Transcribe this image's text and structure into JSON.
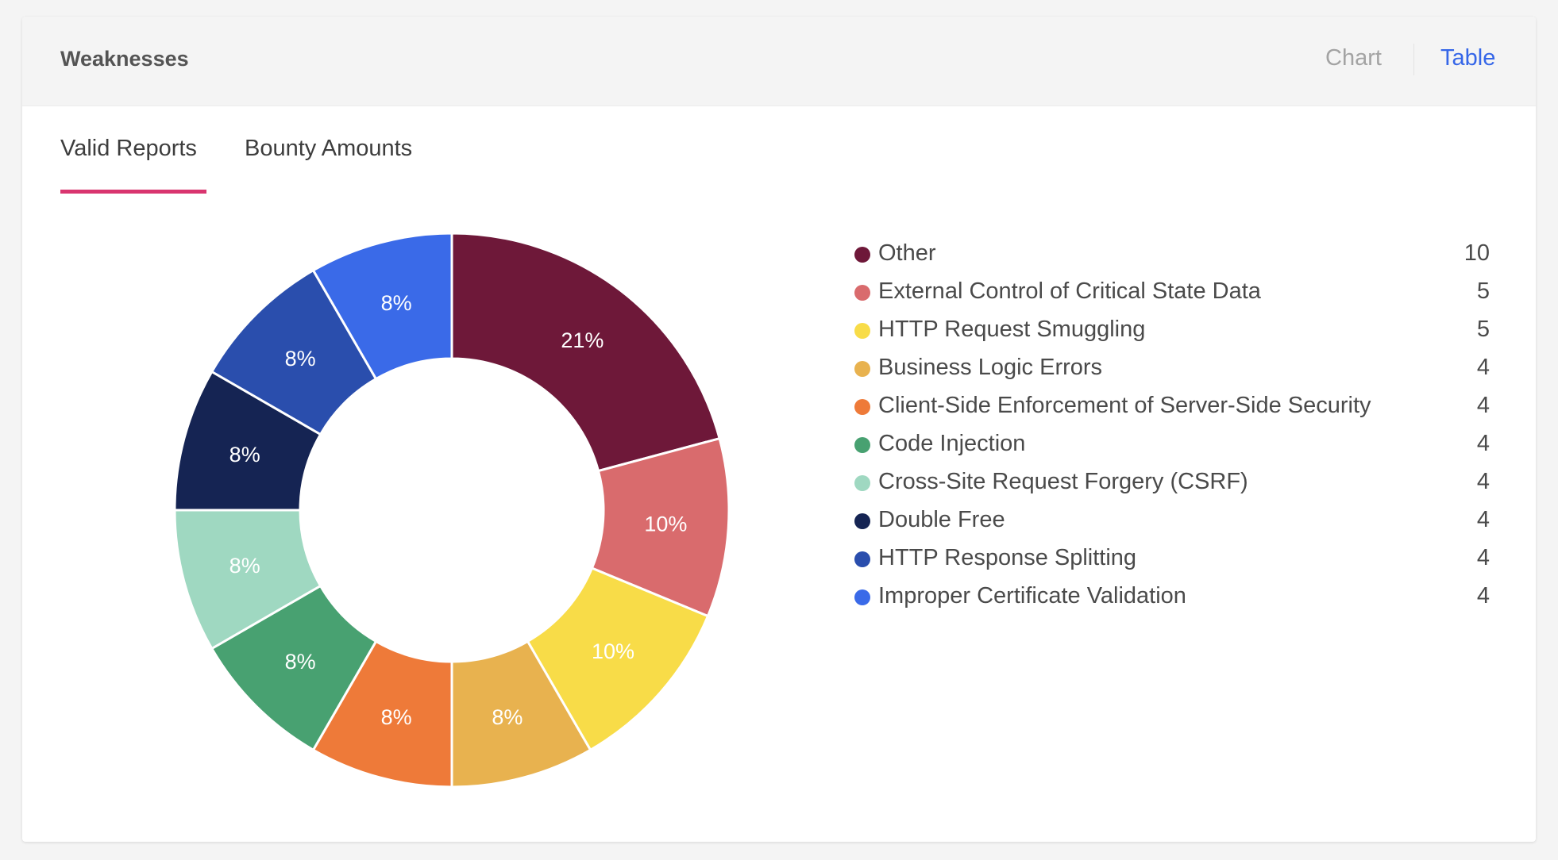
{
  "header": {
    "title": "Weaknesses",
    "chart_label": "Chart",
    "table_label": "Table"
  },
  "tabs": [
    {
      "label": "Valid Reports",
      "active": true
    },
    {
      "label": "Bounty Amounts",
      "active": false
    }
  ],
  "colors": {
    "accent": "#d9356f",
    "link": "#3566e8"
  },
  "chart_data": {
    "type": "pie",
    "donut": true,
    "start": "top",
    "direction": "clockwise",
    "legend_position": "right",
    "categories": [
      "Other",
      "External Control of Critical State Data",
      "HTTP Request Smuggling",
      "Business Logic Errors",
      "Client-Side Enforcement of Server-Side Security",
      "Code Injection",
      "Cross-Site Request Forgery (CSRF)",
      "Double Free",
      "HTTP Response Splitting",
      "Improper Certificate Validation"
    ],
    "values": [
      10,
      5,
      5,
      4,
      4,
      4,
      4,
      4,
      4,
      4
    ],
    "labels": [
      "21%",
      "10%",
      "10%",
      "8%",
      "8%",
      "8%",
      "8%",
      "8%",
      "8%",
      "8%"
    ],
    "colors": [
      "#6e1839",
      "#d96b6d",
      "#f8dc48",
      "#e8b24f",
      "#ee7a39",
      "#48a171",
      "#9fd8c1",
      "#152453",
      "#2a4ead",
      "#3a6ae8"
    ]
  }
}
